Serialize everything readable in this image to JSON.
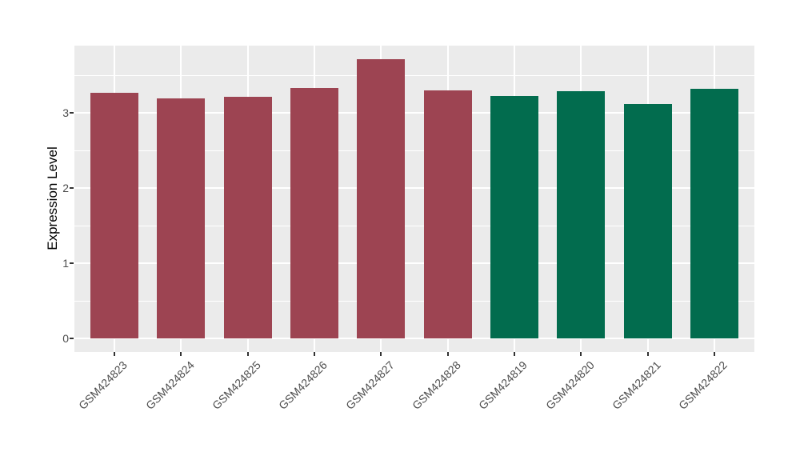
{
  "chart_data": {
    "type": "bar",
    "title": "",
    "xlabel": "",
    "ylabel": "Expression Level",
    "categories": [
      "GSM424823",
      "GSM424824",
      "GSM424825",
      "GSM424826",
      "GSM424827",
      "GSM424828",
      "GSM424819",
      "GSM424820",
      "GSM424821",
      "GSM424822"
    ],
    "values": [
      3.27,
      3.19,
      3.22,
      3.33,
      3.72,
      3.3,
      3.23,
      3.29,
      3.12,
      3.32
    ],
    "bar_colors": [
      "#9D4452",
      "#9D4452",
      "#9D4452",
      "#9D4452",
      "#9D4452",
      "#9D4452",
      "#026C4E",
      "#026C4E",
      "#026C4E",
      "#026C4E"
    ],
    "group_colors": {
      "left_group": "#9D4452",
      "right_group": "#026C4E"
    },
    "ylim": [
      0,
      3.9
    ],
    "yticks": [
      0,
      1,
      2,
      3
    ],
    "ytick_labels": [
      "0",
      "1",
      "2",
      "3"
    ],
    "y_minor_ticks": [
      0.5,
      1.5,
      2.5,
      3.5
    ],
    "grid": true,
    "legend_position": "none",
    "x_label_angle_deg": 45,
    "panel_background": "#EBEBEB",
    "gridline_color": "#FFFFFF",
    "axis_text_color": "#4D4D4D",
    "axis_title_color": "#000000",
    "tick_mark_color": "#333333"
  }
}
